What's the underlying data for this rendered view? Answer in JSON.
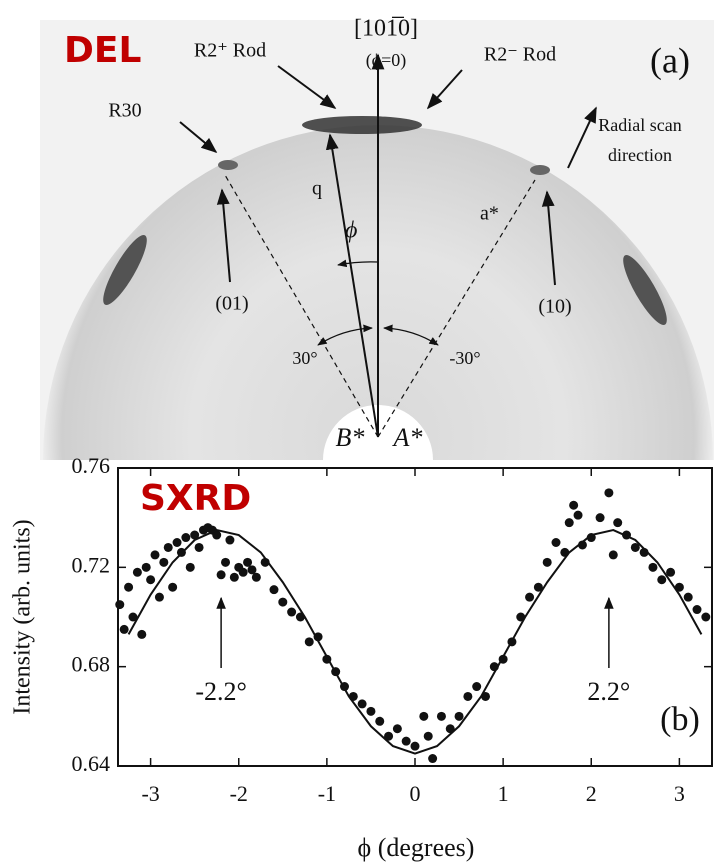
{
  "diffraction_panel": {
    "tag": "DEL",
    "panel": "(a)",
    "direction": "[101̅0]",
    "direction_note": "(ϕ=0)",
    "r2_plus": "R2⁺ Rod",
    "r2_minus": "R2⁻ Rod",
    "r30": "R30",
    "radial_1": "Radial scan",
    "radial_2": "direction",
    "q": "q",
    "phi": "ϕ",
    "a_star": "a*",
    "spot_01": "(01)",
    "spot_10": "(10)",
    "angle_pos": "30°",
    "angle_neg": "-30°",
    "b_domain": "B*",
    "a_domain": "A*"
  },
  "chart_data": {
    "type": "scatter",
    "tag": "SXRD",
    "panel": "(b)",
    "x_label": "ϕ (degrees)",
    "y_label": "Intensity (arb. units)",
    "xlim": [
      -3.37,
      3.37
    ],
    "ylim": [
      0.64,
      0.76
    ],
    "xticks": [
      -3,
      -2,
      -1,
      0,
      1,
      2,
      3
    ],
    "yticks": [
      0.64,
      0.68,
      0.72,
      0.76
    ],
    "annotations": [
      {
        "text": "-2.2°",
        "x": -2.2
      },
      {
        "text": "2.2°",
        "x": 2.2
      }
    ],
    "series": [
      {
        "style": "markers",
        "color": "#111111",
        "x": [
          -3.35,
          -3.3,
          -3.25,
          -3.2,
          -3.15,
          -3.1,
          -3.05,
          -3.0,
          -2.95,
          -2.9,
          -2.85,
          -2.8,
          -2.75,
          -2.7,
          -2.65,
          -2.6,
          -2.55,
          -2.5,
          -2.45,
          -2.4,
          -2.35,
          -2.3,
          -2.25,
          -2.2,
          -2.15,
          -2.1,
          -2.05,
          -2.0,
          -1.95,
          -1.9,
          -1.85,
          -1.8,
          -1.7,
          -1.6,
          -1.5,
          -1.4,
          -1.3,
          -1.2,
          -1.1,
          -1.0,
          -0.9,
          -0.8,
          -0.7,
          -0.6,
          -0.5,
          -0.4,
          -0.3,
          -0.2,
          -0.1,
          0.0,
          0.1,
          0.15,
          0.2,
          0.3,
          0.4,
          0.5,
          0.6,
          0.7,
          0.8,
          0.9,
          1.0,
          1.1,
          1.2,
          1.3,
          1.4,
          1.5,
          1.6,
          1.7,
          1.75,
          1.8,
          1.85,
          1.9,
          2.0,
          2.1,
          2.2,
          2.25,
          2.3,
          2.4,
          2.5,
          2.6,
          2.7,
          2.8,
          2.9,
          3.0,
          3.1,
          3.2,
          3.3
        ],
        "values": [
          0.705,
          0.695,
          0.712,
          0.7,
          0.718,
          0.693,
          0.72,
          0.715,
          0.725,
          0.708,
          0.722,
          0.728,
          0.712,
          0.73,
          0.726,
          0.732,
          0.72,
          0.733,
          0.728,
          0.735,
          0.736,
          0.735,
          0.733,
          0.717,
          0.722,
          0.731,
          0.716,
          0.72,
          0.718,
          0.722,
          0.719,
          0.716,
          0.722,
          0.711,
          0.706,
          0.702,
          0.7,
          0.69,
          0.692,
          0.683,
          0.678,
          0.672,
          0.668,
          0.665,
          0.662,
          0.658,
          0.652,
          0.655,
          0.65,
          0.648,
          0.66,
          0.652,
          0.643,
          0.66,
          0.655,
          0.66,
          0.668,
          0.672,
          0.668,
          0.68,
          0.683,
          0.69,
          0.7,
          0.708,
          0.712,
          0.722,
          0.73,
          0.726,
          0.738,
          0.745,
          0.741,
          0.729,
          0.732,
          0.74,
          0.75,
          0.725,
          0.738,
          0.733,
          0.728,
          0.726,
          0.72,
          0.715,
          0.718,
          0.712,
          0.708,
          0.703,
          0.7
        ]
      },
      {
        "style": "line",
        "color": "#111111",
        "x": [
          -3.25,
          -3.0,
          -2.75,
          -2.5,
          -2.25,
          -2.0,
          -1.75,
          -1.5,
          -1.25,
          -1.0,
          -0.75,
          -0.5,
          -0.25,
          0,
          0.25,
          0.5,
          0.75,
          1.0,
          1.25,
          1.5,
          1.75,
          2.0,
          2.25,
          2.5,
          2.75,
          3.0,
          3.25
        ],
        "values": [
          0.693,
          0.709,
          0.722,
          0.731,
          0.735,
          0.733,
          0.726,
          0.714,
          0.7,
          0.684,
          0.668,
          0.656,
          0.648,
          0.645,
          0.648,
          0.656,
          0.668,
          0.684,
          0.7,
          0.714,
          0.726,
          0.733,
          0.735,
          0.731,
          0.722,
          0.709,
          0.693
        ]
      }
    ]
  }
}
